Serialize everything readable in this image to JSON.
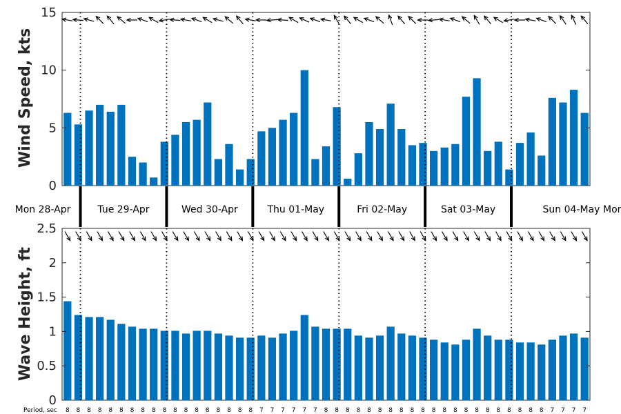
{
  "chart_data": [
    {
      "type": "bar",
      "ylabel": "Wind Speed, kts",
      "ylim": [
        0,
        15
      ],
      "yticks": [
        0,
        5,
        10,
        15
      ],
      "color": "#0072BD",
      "values": [
        6.3,
        5.3,
        6.5,
        7.0,
        6.4,
        7.0,
        2.5,
        2.0,
        0.7,
        3.8,
        4.4,
        5.5,
        5.7,
        7.2,
        2.3,
        3.6,
        1.4,
        2.3,
        4.7,
        5.0,
        5.7,
        6.3,
        10.0,
        2.3,
        3.4,
        6.8,
        0.6,
        2.8,
        5.5,
        4.9,
        7.1,
        4.9,
        3.5,
        3.7,
        3.0,
        3.3,
        3.6,
        7.7,
        9.3,
        3.0,
        3.8,
        1.4,
        3.7,
        4.6,
        2.6,
        7.6,
        7.2,
        8.3,
        6.3
      ],
      "direction_arrows_deg": [
        280,
        275,
        285,
        315,
        320,
        310,
        270,
        290,
        300,
        260,
        275,
        280,
        290,
        300,
        285,
        310,
        320,
        280,
        270,
        265,
        275,
        300,
        295,
        290,
        280,
        330,
        320,
        300,
        290,
        310,
        340,
        320,
        315,
        270,
        265,
        280,
        290,
        310,
        330,
        320,
        300,
        260,
        270,
        280,
        290,
        315,
        325,
        335,
        320
      ]
    },
    {
      "type": "bar",
      "ylabel": "Wave Height, ft",
      "ylim": [
        0,
        2.5
      ],
      "yticks": [
        0,
        0.5,
        1,
        1.5,
        2,
        2.5
      ],
      "ytick_labels": [
        "0",
        "0.5",
        "1",
        "1.5",
        "2",
        "2.5"
      ],
      "color": "#0072BD",
      "values": [
        1.44,
        1.24,
        1.21,
        1.21,
        1.17,
        1.11,
        1.07,
        1.04,
        1.04,
        1.01,
        1.01,
        0.97,
        1.01,
        1.01,
        0.97,
        0.94,
        0.91,
        0.91,
        0.94,
        0.91,
        0.97,
        1.01,
        1.24,
        1.07,
        1.04,
        1.04,
        1.04,
        0.94,
        0.91,
        0.94,
        1.07,
        0.97,
        0.94,
        0.91,
        0.88,
        0.84,
        0.81,
        0.88,
        1.04,
        0.94,
        0.88,
        0.88,
        0.84,
        0.84,
        0.81,
        0.88,
        0.94,
        0.97,
        0.91
      ],
      "direction_arrows_deg": [
        150,
        150,
        150,
        150,
        150,
        150,
        150,
        150,
        150,
        150,
        150,
        150,
        150,
        150,
        150,
        150,
        150,
        150,
        150,
        150,
        150,
        150,
        150,
        150,
        150,
        150,
        150,
        150,
        150,
        150,
        150,
        150,
        150,
        150,
        150,
        150,
        150,
        150,
        150,
        150,
        150,
        150,
        150,
        150,
        150,
        150,
        150,
        150,
        150
      ],
      "period_label": "Period, sec",
      "periods": [
        "8",
        "8",
        "8",
        "8",
        "8",
        "8",
        "8",
        "8",
        "8",
        "8",
        "8",
        "8",
        "8",
        "8",
        "8",
        "8",
        "8",
        "8",
        "7",
        "7",
        "7",
        "7",
        "7",
        "7",
        "8",
        "8",
        "8",
        "8",
        "8",
        "8",
        "8",
        "8",
        "8",
        "8",
        "8",
        "8",
        "8",
        "8",
        "8",
        "8",
        "8",
        "8",
        "8",
        "8",
        "8",
        "7",
        "7",
        "7",
        "7"
      ]
    }
  ],
  "days": [
    "Mon 28-Apr",
    "Tue 29-Apr",
    "Wed 30-Apr",
    "Thu 01-May",
    "Fri 02-May",
    "Sat 03-May",
    "Sun 04-May",
    "Mon"
  ]
}
